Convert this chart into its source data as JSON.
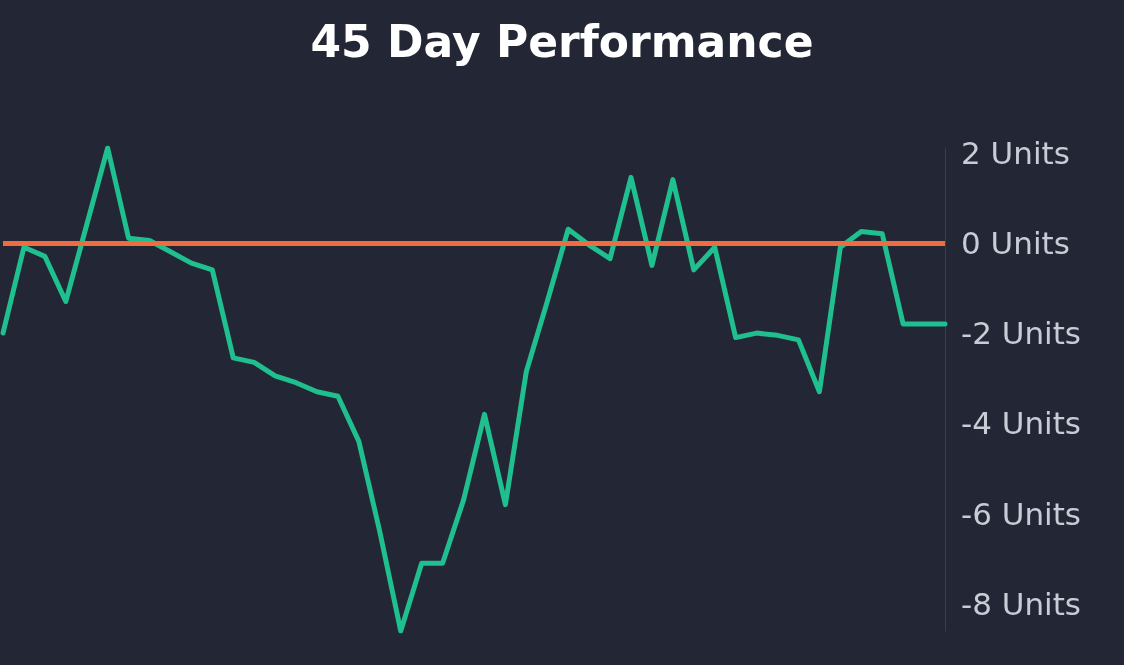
{
  "chart_data": {
    "type": "line",
    "title": "45 Day Performance",
    "categories": [
      null,
      null,
      null,
      null,
      null,
      null,
      null,
      null,
      null,
      null,
      null,
      null,
      null,
      null,
      null,
      null,
      null,
      null,
      null,
      null,
      null,
      null,
      null,
      null,
      null,
      null,
      null,
      null,
      null,
      null,
      null,
      null,
      null,
      null,
      null,
      null,
      null,
      null,
      null,
      null,
      null,
      null,
      null,
      null,
      null,
      null
    ],
    "series": [
      {
        "color": "#1fbf8f",
        "values": [
          -2.0,
          -0.1,
          -0.3,
          -1.3,
          0.4,
          2.1,
          0.1,
          0.05,
          -0.2,
          -0.45,
          -0.6,
          -2.55,
          -2.65,
          -2.95,
          -3.1,
          -3.3,
          -3.4,
          -4.4,
          -6.4,
          -8.6,
          -7.1,
          -7.1,
          -5.7,
          -3.8,
          -5.8,
          -2.85,
          -1.3,
          0.3,
          -0.05,
          -0.35,
          1.45,
          -0.5,
          1.4,
          -0.6,
          -0.1,
          -2.1,
          -2.0,
          -2.05,
          -2.15,
          -3.3,
          -0.1,
          0.25,
          0.2,
          -1.8,
          -1.8,
          -1.8
        ]
      }
    ],
    "ylim": [
      -8.6,
      2.1
    ],
    "yticks": [
      {
        "value": -8,
        "label": "-8 Units"
      },
      {
        "value": -6,
        "label": "-6 Units"
      },
      {
        "value": -4,
        "label": "-4 Units"
      },
      {
        "value": -2,
        "label": "-2 Units"
      },
      {
        "value": 0,
        "label": "0 Units"
      },
      {
        "value": 2,
        "label": "2 Units"
      }
    ],
    "ref_lines": [
      {
        "axis": "y",
        "value": 0,
        "color": "#ee6c3f"
      }
    ],
    "grid": false,
    "marker": "none",
    "line_style": "solid"
  }
}
